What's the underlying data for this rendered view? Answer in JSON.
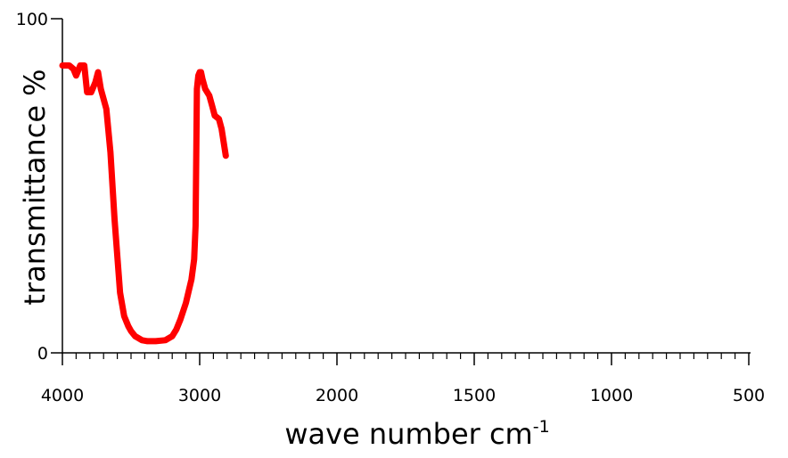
{
  "chart_data": {
    "type": "line",
    "title": "",
    "xlabel": "wave number cm",
    "xlabel_superscript": "-1",
    "ylabel": "transmittance %",
    "x_reversed": true,
    "xlim": [
      4000,
      500
    ],
    "ylim": [
      0,
      100
    ],
    "x_ticks": [
      4000,
      3000,
      2000,
      1500,
      1000,
      500
    ],
    "x_tick_labels": [
      "4000",
      "3000",
      "2000",
      "1500",
      "1000",
      "500"
    ],
    "y_ticks": [
      0,
      100
    ],
    "y_tick_labels": [
      "0",
      "100"
    ],
    "grid": false,
    "series": [
      {
        "color": "#ff0000",
        "x": [
          4000,
          3950,
          3920,
          3900,
          3870,
          3840,
          3820,
          3790,
          3760,
          3740,
          3720,
          3680,
          3650,
          3620,
          3580,
          3550,
          3520,
          3500,
          3470,
          3420,
          3380,
          3320,
          3250,
          3200,
          3170,
          3140,
          3100,
          3060,
          3040,
          3030,
          3020,
          3010,
          3000,
          2990,
          2980,
          2960,
          2930,
          2910,
          2890,
          2860,
          2840,
          2810
        ],
        "y": [
          86,
          86,
          85,
          83,
          86,
          86,
          78,
          78,
          81,
          84,
          79,
          73,
          60,
          40,
          18,
          11,
          8,
          6.5,
          5,
          3.8,
          3.5,
          3.5,
          3.8,
          5,
          7,
          10,
          15,
          22,
          28,
          38,
          79,
          83,
          84,
          84,
          82,
          79,
          77,
          74,
          71,
          70,
          67,
          59
        ]
      }
    ]
  }
}
